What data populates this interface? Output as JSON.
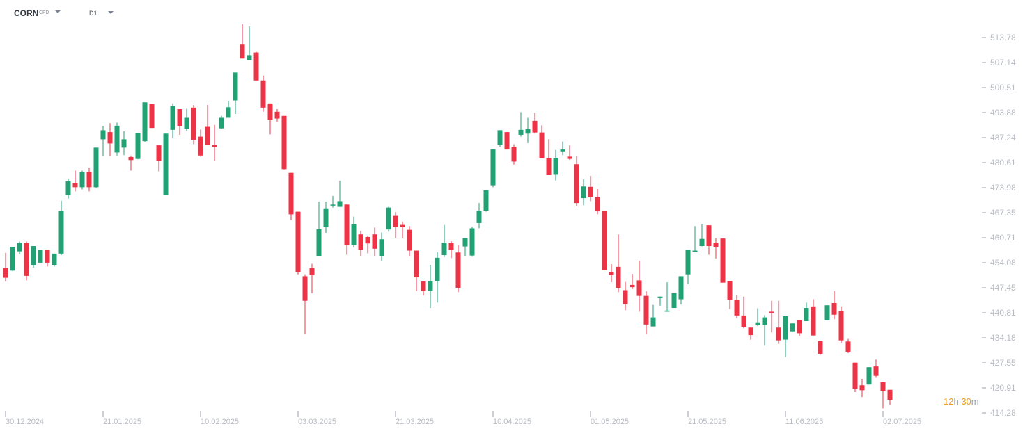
{
  "toolbar": {
    "symbol": "CORN",
    "symbol_type": "CFD",
    "timeframe": "D1"
  },
  "countdown": {
    "hours": "12",
    "hours_unit": "h",
    "minutes": "30",
    "minutes_unit": "m"
  },
  "colors": {
    "up": "#22a274",
    "down": "#ef3347",
    "axis_text": "#b8bcc3",
    "countdown": "#f29c1f"
  },
  "chart_data": {
    "type": "candlestick",
    "y_ticks": [
      "513.78",
      "507.14",
      "500.51",
      "493.88",
      "487.24",
      "480.61",
      "473.98",
      "467.35",
      "460.71",
      "454.08",
      "447.45",
      "440.81",
      "434.18",
      "427.55",
      "420.91",
      "414.28"
    ],
    "x_ticks": [
      "30.12.2024",
      "21.01.2025",
      "10.02.2025",
      "03.03.2025",
      "21.03.2025",
      "10.04.2025",
      "01.05.2025",
      "21.05.2025",
      "11.06.2025",
      "02.07.2025"
    ],
    "ylim": [
      414.28,
      513.78
    ],
    "grid": false,
    "ohlc": [
      [
        452.7,
        456.7,
        450.1,
        449.1
      ],
      [
        452.0,
        458.3,
        458.3,
        451.9
      ],
      [
        457.1,
        459.7,
        459.3,
        456.3
      ],
      [
        459.3,
        459.7,
        450.6,
        449.4
      ],
      [
        453.4,
        458.5,
        458.5,
        452.8
      ],
      [
        454.1,
        457.5,
        457.5,
        454.1
      ],
      [
        457.5,
        457.5,
        454.1,
        453.1
      ],
      [
        453.4,
        456.5,
        456.5,
        453.1
      ],
      [
        456.5,
        470.5,
        467.9,
        456.1
      ],
      [
        472.0,
        476.4,
        475.7,
        471.1
      ],
      [
        475.2,
        478.5,
        474.1,
        473.0
      ],
      [
        474.1,
        478.5,
        478.1,
        473.5
      ],
      [
        478.1,
        479.3,
        474.1,
        473.0
      ],
      [
        474.1,
        484.6,
        484.6,
        473.9
      ],
      [
        486.8,
        490.3,
        489.2,
        482.4
      ],
      [
        488.7,
        491.1,
        485.7,
        482.4
      ],
      [
        483.3,
        491.2,
        490.4,
        482.5
      ],
      [
        484.6,
        488.9,
        486.8,
        482.6
      ],
      [
        482.1,
        482.5,
        481.3,
        478.5
      ],
      [
        481.6,
        488.5,
        488.5,
        481.5
      ],
      [
        486.3,
        496.6,
        496.6,
        486.0
      ],
      [
        496.1,
        496.1,
        489.8,
        489.8
      ],
      [
        485.2,
        485.2,
        481.1,
        478.3
      ],
      [
        472.1,
        488.3,
        488.3,
        472.1
      ],
      [
        489.3,
        496.3,
        495.7,
        487.1
      ],
      [
        494.8,
        494.8,
        490.3,
        488.0
      ],
      [
        489.6,
        494.9,
        492.5,
        489.0
      ],
      [
        495.2,
        495.9,
        486.7,
        485.5
      ],
      [
        487.5,
        489.4,
        482.5,
        482.2
      ],
      [
        490.1,
        495.9,
        485.3,
        485.3
      ],
      [
        485.3,
        490.6,
        484.8,
        481.1
      ],
      [
        489.7,
        493.0,
        492.5,
        489.5
      ],
      [
        492.5,
        497.0,
        495.3,
        492.5
      ],
      [
        497.1,
        502.4,
        504.5,
        493.5
      ],
      [
        511.9,
        517.3,
        508.2,
        508.2
      ],
      [
        507.7,
        516.7,
        509.1,
        508.1
      ],
      [
        509.8,
        510.0,
        502.4,
        502.4
      ],
      [
        502.4,
        503.7,
        495.2,
        494.1
      ],
      [
        496.3,
        496.3,
        491.9,
        488.1
      ],
      [
        494.1,
        494.8,
        492.3,
        491.5
      ],
      [
        493.0,
        493.0,
        478.9,
        478.8
      ],
      [
        477.9,
        477.9,
        466.9,
        465.4
      ],
      [
        467.6,
        467.6,
        451.5,
        451.0
      ],
      [
        450.5,
        451.0,
        444.0,
        435.2
      ],
      [
        452.7,
        453.8,
        450.8,
        446.0
      ],
      [
        455.9,
        470.3,
        463.0,
        455.9
      ],
      [
        463.5,
        470.3,
        468.5,
        462.0
      ],
      [
        469.5,
        471.8,
        469.5,
        468.7
      ],
      [
        468.9,
        475.8,
        470.4,
        468.9
      ],
      [
        469.5,
        469.5,
        458.8,
        456.2
      ],
      [
        458.8,
        466.3,
        464.4,
        458.1
      ],
      [
        461.6,
        462.5,
        457.5,
        455.9
      ],
      [
        460.9,
        461.2,
        459.2,
        456.6
      ],
      [
        461.6,
        463.4,
        457.8,
        455.9
      ],
      [
        455.9,
        462.1,
        460.3,
        454.6
      ],
      [
        462.9,
        468.9,
        468.7,
        462.3
      ],
      [
        466.5,
        467.5,
        463.5,
        460.6
      ],
      [
        464.1,
        465.0,
        463.5,
        460.6
      ],
      [
        462.8,
        463.8,
        457.3,
        455.8
      ],
      [
        457.3,
        457.3,
        450.2,
        446.6
      ],
      [
        449.1,
        449.1,
        446.6,
        445.4
      ],
      [
        446.6,
        453.5,
        449.2,
        442.1
      ],
      [
        449.2,
        456.9,
        455.4,
        443.5
      ],
      [
        456.1,
        464.1,
        459.4,
        455.6
      ],
      [
        459.3,
        459.8,
        457.5,
        455.3
      ],
      [
        456.8,
        458.8,
        447.4,
        446.3
      ],
      [
        458.4,
        460.6,
        460.6,
        455.9
      ],
      [
        456.0,
        463.6,
        463.2,
        455.7
      ],
      [
        464.6,
        469.9,
        467.9,
        463.2
      ],
      [
        467.9,
        473.3,
        473.3,
        467.6
      ],
      [
        474.6,
        484.3,
        484.1,
        474.1
      ],
      [
        485.3,
        489.2,
        489.2,
        484.8
      ],
      [
        488.7,
        488.7,
        484.1,
        484.1
      ],
      [
        484.8,
        485.5,
        480.9,
        480.1
      ],
      [
        488.0,
        494.0,
        489.3,
        487.5
      ],
      [
        488.3,
        492.5,
        489.5,
        485.8
      ],
      [
        491.7,
        493.8,
        488.6,
        488.3
      ],
      [
        488.6,
        490.5,
        481.8,
        481.8
      ],
      [
        481.8,
        486.8,
        477.3,
        477.7
      ],
      [
        477.4,
        484.0,
        481.9,
        475.9
      ],
      [
        483.6,
        486.2,
        484.1,
        482.6
      ],
      [
        482.2,
        485.2,
        481.6,
        481.3
      ],
      [
        480.2,
        482.4,
        469.9,
        469.0
      ],
      [
        471.2,
        476.2,
        474.3,
        469.3
      ],
      [
        474.2,
        477.1,
        471.4,
        470.4
      ],
      [
        471.4,
        473.6,
        467.7,
        466.9
      ],
      [
        467.8,
        467.8,
        452.1,
        452.1
      ],
      [
        451.5,
        453.7,
        450.8,
        448.9
      ],
      [
        453.0,
        461.6,
        447.4,
        446.3
      ],
      [
        446.8,
        449.0,
        443.1,
        441.5
      ],
      [
        448.2,
        451.1,
        447.6,
        447.1
      ],
      [
        449.4,
        454.6,
        445.3,
        441.1
      ],
      [
        445.3,
        446.5,
        437.7,
        435.2
      ],
      [
        437.2,
        442.9,
        439.6,
        437.8
      ],
      [
        444.7,
        445.1,
        445.1,
        442.7
      ],
      [
        441.1,
        448.9,
        441.4,
        441.4
      ],
      [
        442.1,
        442.1,
        446.0,
        443.6
      ],
      [
        444.4,
        450.5,
        450.5,
        443.0
      ],
      [
        451.0,
        457.0,
        457.5,
        448.4
      ],
      [
        457.3,
        463.8,
        457.3,
        457.3
      ],
      [
        458.5,
        464.3,
        460.4,
        458.4
      ],
      [
        464.0,
        464.0,
        458.5,
        456.2
      ],
      [
        459.4,
        460.6,
        458.3,
        455.2
      ],
      [
        460.5,
        460.5,
        448.8,
        448.8
      ],
      [
        449.2,
        449.2,
        444.3,
        441.8
      ],
      [
        444.3,
        445.5,
        440.1,
        439.4
      ],
      [
        440.1,
        445.1,
        437.1,
        436.7
      ],
      [
        436.9,
        436.9,
        434.9,
        433.7
      ],
      [
        437.6,
        442.0,
        438.1,
        437.3
      ],
      [
        437.6,
        440.2,
        439.6,
        432.1
      ],
      [
        441.1,
        444.0,
        441.0,
        435.6
      ],
      [
        436.9,
        444.0,
        433.5,
        432.6
      ],
      [
        433.7,
        438.8,
        439.9,
        429.1
      ],
      [
        435.9,
        435.9,
        438.0,
        435.7
      ],
      [
        438.8,
        438.8,
        435.4,
        434.7
      ],
      [
        438.6,
        443.5,
        442.1,
        438.6
      ],
      [
        442.5,
        444.4,
        434.8,
        434.8
      ],
      [
        433.3,
        433.3,
        429.9,
        429.7
      ],
      [
        438.8,
        442.8,
        442.8,
        438.8
      ],
      [
        443.4,
        446.6,
        440.3,
        439.1
      ],
      [
        441.2,
        442.5,
        433.5,
        432.9
      ],
      [
        433.2,
        433.9,
        430.5,
        430.1
      ],
      [
        427.6,
        427.6,
        420.6,
        419.8
      ],
      [
        421.6,
        423.3,
        420.3,
        418.5
      ],
      [
        421.8,
        426.4,
        426.4,
        421.8
      ],
      [
        426.6,
        428.4,
        424.1,
        423.6
      ],
      [
        422.4,
        422.4,
        420.0,
        415.5
      ],
      [
        420.4,
        420.4,
        417.7,
        416.5
      ]
    ]
  }
}
